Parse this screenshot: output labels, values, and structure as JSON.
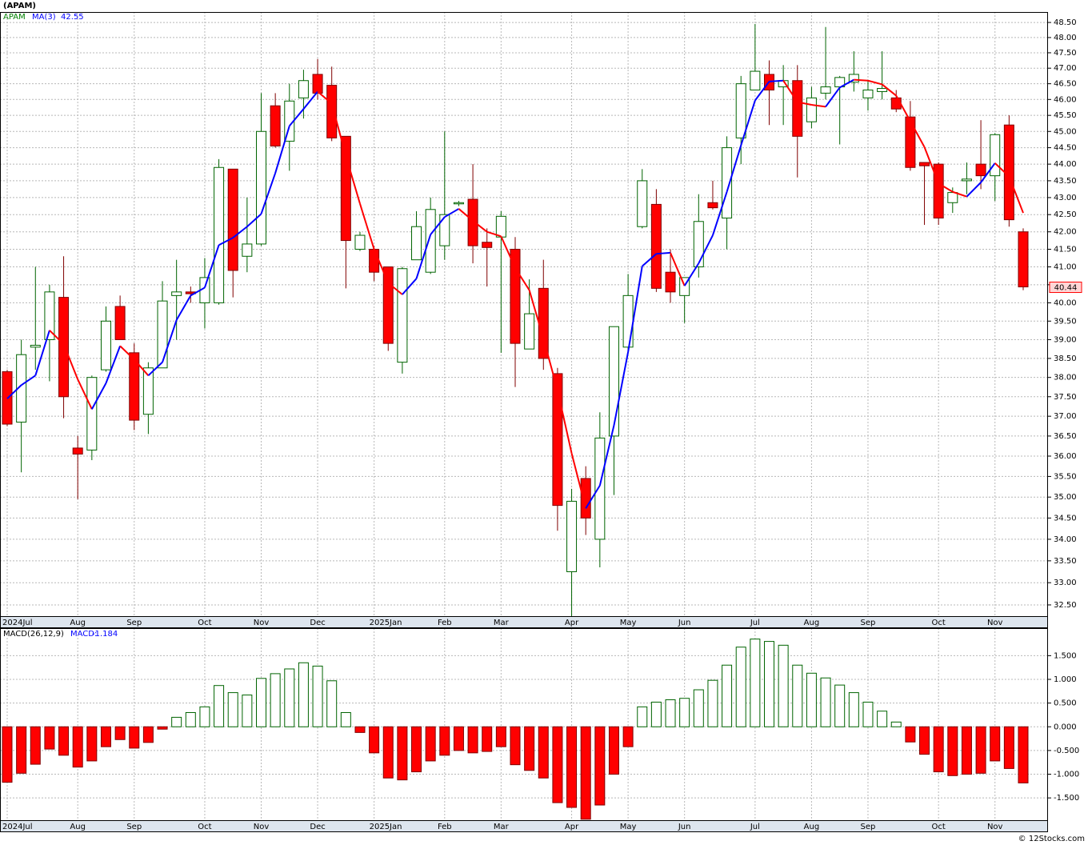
{
  "chart_data": [
    {
      "type": "candlestick",
      "title": "(APAM)",
      "categories": [
        "2024Jul",
        null,
        null,
        null,
        null,
        "Aug",
        null,
        null,
        null,
        "Sep",
        null,
        null,
        null,
        null,
        "Oct",
        null,
        null,
        null,
        "Nov",
        null,
        null,
        null,
        "Dec",
        null,
        null,
        null,
        "2025Jan",
        null,
        null,
        null,
        null,
        "Feb",
        null,
        null,
        null,
        "Mar",
        null,
        null,
        null,
        null,
        "Apr",
        null,
        null,
        null,
        "May",
        null,
        null,
        null,
        "Jun",
        null,
        null,
        null,
        null,
        "Jul",
        null,
        null,
        null,
        "Aug",
        null,
        null,
        null,
        "Sep",
        null,
        null,
        null,
        null,
        "Oct",
        null,
        null,
        null,
        "Nov",
        null,
        null
      ],
      "series": [
        {
          "name": "APAM",
          "up_color": "#006400",
          "down_color": "#ff0000",
          "open": [
            38.15,
            36.85,
            38.8,
            39.0,
            40.15,
            36.2,
            36.15,
            38.2,
            39.9,
            38.65,
            37.05,
            38.25,
            40.2,
            40.3,
            40.0,
            40.0,
            43.85,
            41.3,
            41.65,
            45.8,
            44.7,
            46.05,
            46.8,
            46.45,
            44.85,
            41.5,
            41.5,
            41.0,
            38.4,
            41.2,
            40.85,
            41.6,
            42.85,
            42.95,
            41.7,
            41.85,
            41.5,
            38.75,
            40.4,
            38.1,
            33.25,
            35.45,
            34.0,
            36.5,
            38.8,
            42.15,
            42.8,
            40.85,
            40.2,
            41.0,
            42.85,
            42.4,
            44.8,
            46.3,
            46.8,
            46.4,
            46.6,
            45.3,
            46.2,
            46.4,
            46.55,
            46.05,
            46.25,
            46.05,
            45.45,
            44.05,
            44.0,
            42.85,
            43.5,
            44.0,
            43.65,
            45.2,
            42.0
          ],
          "high": [
            38.2,
            39.0,
            41.0,
            40.5,
            41.3,
            36.5,
            38.05,
            39.9,
            40.2,
            38.9,
            38.4,
            40.6,
            41.2,
            40.45,
            41.25,
            44.15,
            43.85,
            43.0,
            46.2,
            46.2,
            46.5,
            46.95,
            47.3,
            47.05,
            44.85,
            42.0,
            41.6,
            41.0,
            41.0,
            42.6,
            43.0,
            45.0,
            42.9,
            44.0,
            42.1,
            42.6,
            41.85,
            40.65,
            41.2,
            38.25,
            35.2,
            35.75,
            37.1,
            39.35,
            40.8,
            43.85,
            43.25,
            41.5,
            40.7,
            43.1,
            43.5,
            44.85,
            46.75,
            48.45,
            47.25,
            47.1,
            47.1,
            46.4,
            48.35,
            46.75,
            47.55,
            46.6,
            47.55,
            46.3,
            45.95,
            44.05,
            44.05,
            43.3,
            44.05,
            45.35,
            44.95,
            45.5,
            42.1
          ],
          "low": [
            36.75,
            35.6,
            38.2,
            37.9,
            36.95,
            34.95,
            35.9,
            38.15,
            39.0,
            36.65,
            36.55,
            38.25,
            39.0,
            40.0,
            39.3,
            39.95,
            40.15,
            40.85,
            41.6,
            44.5,
            43.8,
            45.4,
            46.0,
            44.7,
            40.4,
            41.45,
            40.6,
            38.7,
            38.1,
            41.2,
            40.8,
            41.2,
            42.75,
            41.1,
            40.45,
            38.65,
            37.75,
            38.75,
            38.2,
            34.2,
            32.25,
            34.1,
            33.35,
            35.05,
            38.7,
            42.1,
            40.3,
            40.0,
            39.45,
            40.7,
            42.65,
            41.5,
            44.0,
            46.3,
            45.2,
            45.2,
            43.6,
            45.1,
            46.0,
            44.6,
            46.25,
            45.65,
            46.0,
            45.6,
            43.8,
            42.2,
            42.2,
            42.55,
            43.1,
            43.25,
            42.9,
            42.15,
            40.35
          ],
          "close": [
            36.8,
            38.6,
            38.85,
            40.3,
            37.5,
            36.05,
            38.0,
            39.5,
            39.0,
            36.9,
            38.25,
            40.05,
            40.3,
            40.25,
            40.7,
            43.9,
            40.9,
            41.65,
            45.0,
            44.55,
            45.95,
            46.6,
            46.2,
            44.8,
            41.75,
            41.9,
            40.85,
            38.9,
            40.95,
            42.15,
            42.65,
            42.5,
            42.85,
            41.6,
            41.55,
            42.45,
            38.9,
            39.7,
            38.5,
            34.8,
            34.9,
            34.5,
            36.45,
            39.35,
            40.2,
            43.5,
            40.4,
            40.3,
            40.7,
            42.3,
            42.7,
            44.5,
            46.5,
            46.9,
            46.3,
            46.6,
            44.85,
            46.05,
            46.4,
            46.7,
            46.8,
            46.3,
            46.35,
            45.7,
            43.9,
            43.95,
            42.4,
            43.15,
            43.55,
            43.65,
            44.9,
            42.35,
            40.44
          ]
        },
        {
          "name": "MA(3)",
          "type": "line",
          "up_color": "#0000ff",
          "down_color": "#ff0000",
          "values": [
            37.45,
            37.8,
            38.05,
            39.25,
            38.88,
            37.95,
            37.18,
            37.85,
            38.83,
            38.47,
            38.05,
            38.4,
            39.53,
            40.2,
            40.42,
            41.62,
            41.83,
            42.15,
            42.52,
            43.73,
            45.17,
            45.7,
            46.25,
            45.87,
            44.25,
            42.82,
            41.5,
            40.55,
            40.23,
            40.67,
            41.92,
            42.43,
            42.67,
            42.32,
            42.0,
            41.87,
            40.97,
            40.35,
            39.03,
            37.67,
            36.07,
            34.73,
            35.28,
            36.77,
            38.67,
            41.02,
            41.37,
            41.4,
            40.47,
            41.1,
            41.9,
            43.17,
            44.57,
            45.97,
            46.57,
            46.6,
            45.92,
            45.83,
            45.77,
            46.38,
            46.63,
            46.6,
            46.48,
            46.12,
            45.32,
            44.52,
            43.42,
            43.17,
            43.03,
            43.45,
            44.03,
            43.63,
            42.55
          ]
        }
      ],
      "log_scale": true,
      "grid": true,
      "ylim": [
        32.25,
        48.85
      ],
      "yticks": [
        {
          "value": 32.5,
          "label": "32.50"
        },
        {
          "value": 33,
          "label": "33.00"
        },
        {
          "value": 33.5,
          "label": "33.50"
        },
        {
          "value": 34,
          "label": "34.00"
        },
        {
          "value": 34.5,
          "label": "34.50"
        },
        {
          "value": 35,
          "label": "35.00"
        },
        {
          "value": 35.5,
          "label": "35.50"
        },
        {
          "value": 36,
          "label": "36.00"
        },
        {
          "value": 36.5,
          "label": "36.50"
        },
        {
          "value": 37,
          "label": "37.00"
        },
        {
          "value": 37.5,
          "label": "37.50"
        },
        {
          "value": 38,
          "label": "38.00"
        },
        {
          "value": 38.5,
          "label": "38.50"
        },
        {
          "value": 39,
          "label": "39.00"
        },
        {
          "value": 39.5,
          "label": "39.50"
        },
        {
          "value": 40,
          "label": "40.00"
        },
        {
          "value": 40.5,
          "label": "40.50"
        },
        {
          "value": 41,
          "label": "41.00"
        },
        {
          "value": 41.5,
          "label": "41.50"
        },
        {
          "value": 42,
          "label": "42.00"
        },
        {
          "value": 42.5,
          "label": "42.50"
        },
        {
          "value": 43,
          "label": "43.00"
        },
        {
          "value": 43.5,
          "label": "43.50"
        },
        {
          "value": 44,
          "label": "44.00"
        },
        {
          "value": 44.5,
          "label": "44.50"
        },
        {
          "value": 45,
          "label": "45.00"
        },
        {
          "value": 45.5,
          "label": "45.50"
        },
        {
          "value": 46,
          "label": "46.00"
        },
        {
          "value": 46.5,
          "label": "46.50"
        },
        {
          "value": 47,
          "label": "47.00"
        },
        {
          "value": 47.5,
          "label": "47.50"
        },
        {
          "value": 48,
          "label": "48.00"
        },
        {
          "value": 48.5,
          "label": "48.50"
        }
      ]
    },
    {
      "type": "bar",
      "title": "MACD(26,12,9)",
      "categories": [
        "2024Jul",
        null,
        null,
        null,
        null,
        "Aug",
        null,
        null,
        null,
        "Sep",
        null,
        null,
        null,
        null,
        "Oct",
        null,
        null,
        null,
        "Nov",
        null,
        null,
        null,
        "Dec",
        null,
        null,
        null,
        "2025Jan",
        null,
        null,
        null,
        null,
        "Feb",
        null,
        null,
        null,
        "Mar",
        null,
        null,
        null,
        null,
        "Apr",
        null,
        null,
        null,
        "May",
        null,
        null,
        null,
        "Jun",
        null,
        null,
        null,
        null,
        "Jul",
        null,
        null,
        null,
        "Aug",
        null,
        null,
        null,
        "Sep",
        null,
        null,
        null,
        null,
        "Oct",
        null,
        null,
        null,
        "Nov",
        null,
        null
      ],
      "series": [
        {
          "name": "MACD:",
          "up_color": "#006400",
          "down_color": "#ff0000",
          "values": [
            -1.17,
            -0.98,
            -0.79,
            -0.47,
            -0.6,
            -0.85,
            -0.72,
            -0.42,
            -0.27,
            -0.45,
            -0.33,
            -0.05,
            0.2,
            0.3,
            0.42,
            0.87,
            0.72,
            0.67,
            1.02,
            1.12,
            1.22,
            1.35,
            1.28,
            0.97,
            0.3,
            -0.12,
            -0.55,
            -1.08,
            -1.12,
            -0.95,
            -0.72,
            -0.6,
            -0.5,
            -0.55,
            -0.52,
            -0.42,
            -0.8,
            -0.92,
            -1.08,
            -1.6,
            -1.7,
            -1.95,
            -1.65,
            -1.0,
            -0.42,
            0.42,
            0.52,
            0.57,
            0.6,
            0.78,
            0.98,
            1.3,
            1.68,
            1.85,
            1.8,
            1.72,
            1.3,
            1.13,
            1.03,
            0.88,
            0.72,
            0.52,
            0.33,
            0.1,
            -0.32,
            -0.58,
            -0.95,
            -1.03,
            -1.0,
            -0.98,
            -0.72,
            -0.88,
            -1.184
          ]
        }
      ],
      "grid": true,
      "ylim": [
        -1.97,
        2.08
      ],
      "yticks": [
        {
          "value": -1.5,
          "label": "-1.500"
        },
        {
          "value": -1,
          "label": "-1.000"
        },
        {
          "value": -0.5,
          "label": "-0.500"
        },
        {
          "value": 0,
          "label": "0.000"
        },
        {
          "value": 0.5,
          "label": "0.500"
        },
        {
          "value": 1,
          "label": "1.000"
        },
        {
          "value": 1.5,
          "label": "1.500"
        }
      ]
    }
  ],
  "footer": "© 12Stocks.com"
}
